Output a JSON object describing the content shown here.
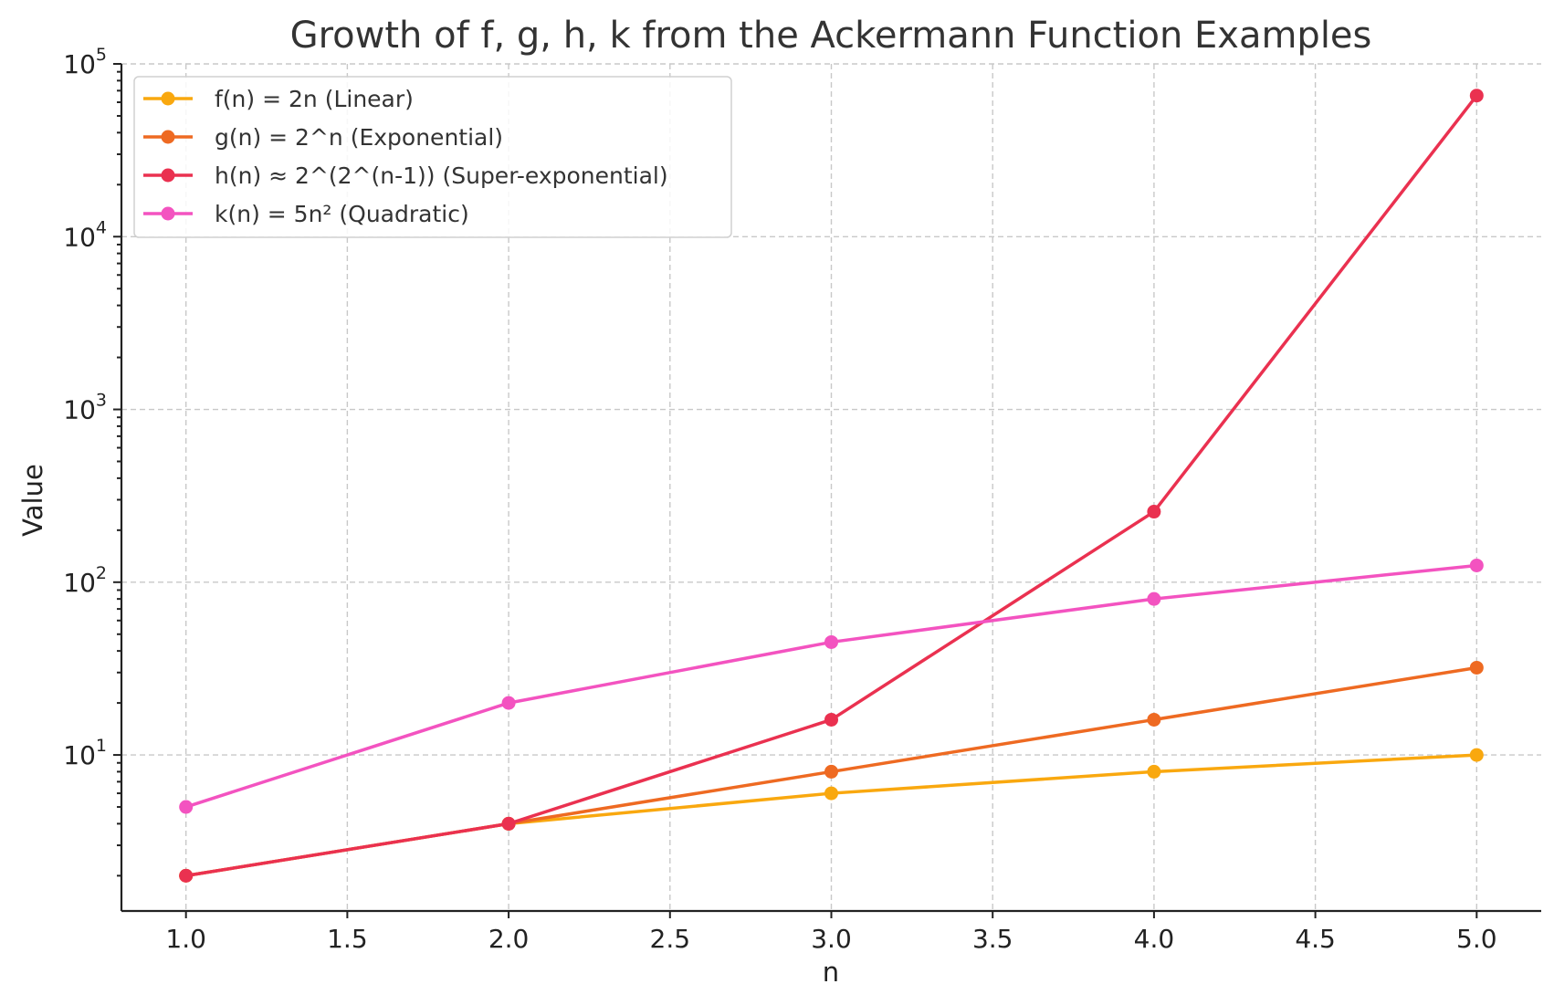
{
  "chart_data": {
    "type": "line",
    "title": "Growth of f, g, h, k from the Ackermann Function Examples",
    "xlabel": "n",
    "ylabel": "Value",
    "x": [
      1,
      2,
      3,
      4,
      5
    ],
    "xlim": [
      0.8,
      5.2
    ],
    "ylim": [
      1.25,
      100000
    ],
    "yscale": "log",
    "grid": true,
    "legend_position": "top-left",
    "x_ticks": [
      {
        "value": 1.0,
        "label": "1.0"
      },
      {
        "value": 1.5,
        "label": "1.5"
      },
      {
        "value": 2.0,
        "label": "2.0"
      },
      {
        "value": 2.5,
        "label": "2.5"
      },
      {
        "value": 3.0,
        "label": "3.0"
      },
      {
        "value": 3.5,
        "label": "3.5"
      },
      {
        "value": 4.0,
        "label": "4.0"
      },
      {
        "value": 4.5,
        "label": "4.5"
      },
      {
        "value": 5.0,
        "label": "5.0"
      }
    ],
    "y_ticks": [
      {
        "value": 10,
        "base": "10",
        "exp": "1"
      },
      {
        "value": 100,
        "base": "10",
        "exp": "2"
      },
      {
        "value": 1000,
        "base": "10",
        "exp": "3"
      },
      {
        "value": 10000,
        "base": "10",
        "exp": "4"
      },
      {
        "value": 100000,
        "base": "10",
        "exp": "5"
      }
    ],
    "series": [
      {
        "name": "f(n) = 2n (Linear)",
        "color": "#f9a80f",
        "values": [
          2,
          4,
          6,
          8,
          10
        ]
      },
      {
        "name": "g(n) = 2^n (Exponential)",
        "color": "#ee6a22",
        "values": [
          2,
          4,
          8,
          16,
          32
        ]
      },
      {
        "name": "h(n) ≈ 2^(2^(n-1)) (Super-exponential)",
        "color": "#ea3150",
        "values": [
          2,
          4,
          16,
          256,
          65536
        ]
      },
      {
        "name": "k(n) = 5n² (Quadratic)",
        "color": "#f353c0",
        "values": [
          5,
          20,
          45,
          80,
          125
        ]
      }
    ]
  }
}
